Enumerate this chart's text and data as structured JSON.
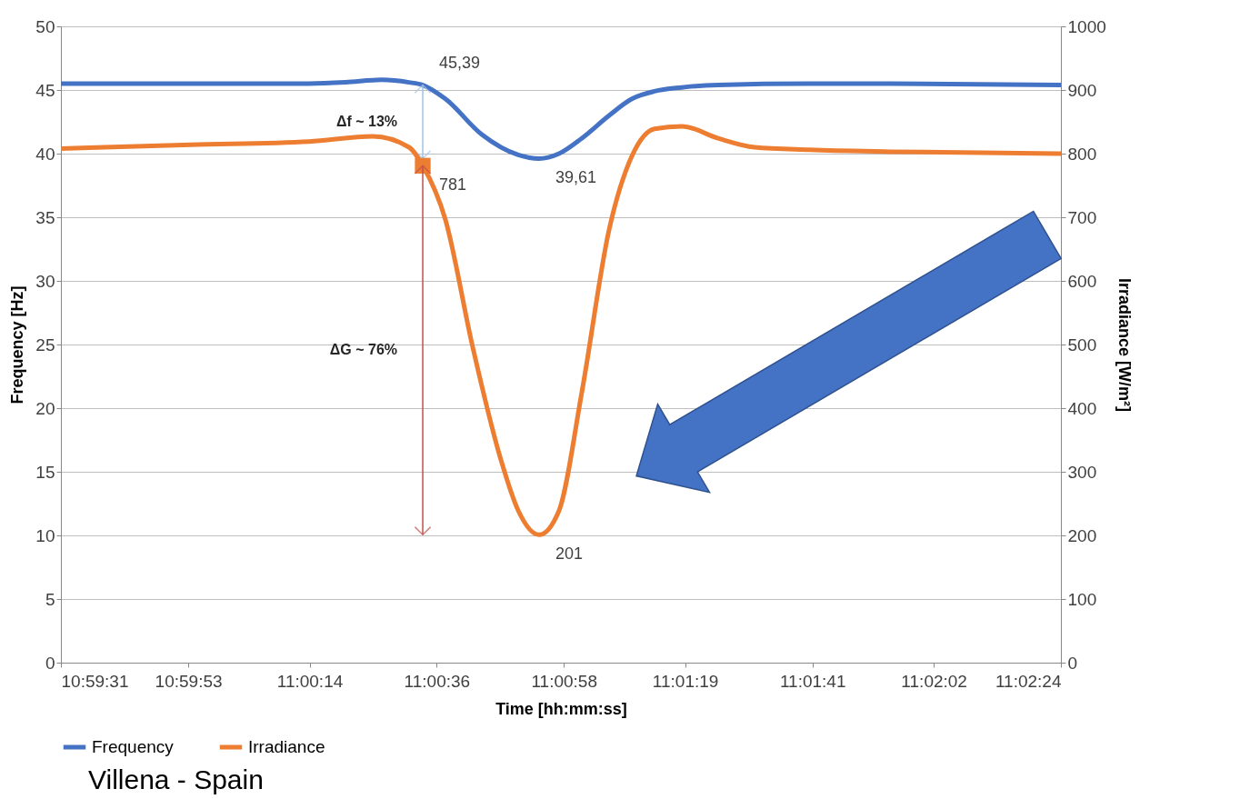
{
  "chart_data": {
    "type": "line",
    "xlabel": "Time [hh:mm:ss]",
    "ylabel": "Frequency [Hz]",
    "y2label": "Irradiance [W/m²]",
    "xlim": [
      10.99194,
      11.04
    ],
    "xticks": [
      {
        "value": 10.99194,
        "label": "10:59:31"
      },
      {
        "value": 10.99806,
        "label": "10:59:53"
      },
      {
        "value": 11.00389,
        "label": "11:00:14"
      },
      {
        "value": 11.01,
        "label": "11:00:36"
      },
      {
        "value": 11.01611,
        "label": "11:00:58"
      },
      {
        "value": 11.02194,
        "label": "11:01:19"
      },
      {
        "value": 11.02806,
        "label": "11:01:41"
      },
      {
        "value": 11.03389,
        "label": "11:02:02"
      },
      {
        "value": 11.04,
        "label": "11:02:24"
      }
    ],
    "ylim": [
      0,
      50
    ],
    "yticks": [
      0,
      5,
      10,
      15,
      20,
      25,
      30,
      35,
      40,
      45,
      50
    ],
    "y2lim": [
      0,
      1000
    ],
    "y2ticks": [
      0,
      100,
      200,
      300,
      400,
      500,
      600,
      700,
      800,
      900,
      1000
    ],
    "series": [
      {
        "name": "Frequency",
        "color": "#4472c4",
        "x": [
          10.99194,
          11.00387,
          11.00562,
          11.00736,
          11.00867,
          11.00933,
          11.01042,
          11.01217,
          11.01392,
          11.01492,
          11.01588,
          11.01697,
          11.01829,
          11.01938,
          11.02047,
          11.02178,
          11.02353,
          11.0279,
          11.03183,
          11.04
        ],
        "values": [
          45.5,
          45.5,
          45.6,
          45.8,
          45.6,
          45.39,
          44.3,
          41.5,
          39.9,
          39.61,
          40.0,
          41.2,
          43.0,
          44.3,
          44.9,
          45.2,
          45.4,
          45.5,
          45.5,
          45.4
        ],
        "value_labels": [
          null,
          null,
          null,
          null,
          null,
          "45,39",
          null,
          null,
          null,
          "39,61",
          null,
          null,
          null,
          null,
          null,
          null,
          null,
          null,
          null,
          null
        ]
      },
      {
        "name": "Irradiance",
        "color": "#ed7d31",
        "axis": "y2",
        "x": [
          10.99194,
          10.99819,
          11.00387,
          11.00693,
          11.00867,
          11.00933,
          11.01042,
          11.01173,
          11.01304,
          11.01392,
          11.01492,
          11.01588,
          11.01697,
          11.01829,
          11.01938,
          11.02047,
          11.02178,
          11.02353,
          11.02528,
          11.0279,
          11.03183,
          11.04
        ],
        "values": [
          808,
          814,
          819,
          827,
          810,
          781,
          696,
          496,
          324,
          239,
          201,
          239,
          424,
          681,
          796,
          839,
          843,
          824,
          810,
          806,
          803,
          800
        ],
        "value_labels": [
          null,
          null,
          null,
          null,
          null,
          "781",
          null,
          null,
          null,
          null,
          "201",
          null,
          null,
          null,
          null,
          null,
          null,
          null,
          null,
          null,
          null,
          null
        ]
      },
      {
        "type": "scatter",
        "color": "#ed7d31",
        "axis": "y2",
        "marker": "square",
        "x": [
          11.00933
        ],
        "values": [
          781
        ]
      }
    ],
    "annotations": [
      "Δf ~ 13%",
      "ΔG ~ 76%",
      "Villena - Spain"
    ],
    "grid": "y",
    "legend": "bottom",
    "marker": "none",
    "line_style": "solid"
  }
}
